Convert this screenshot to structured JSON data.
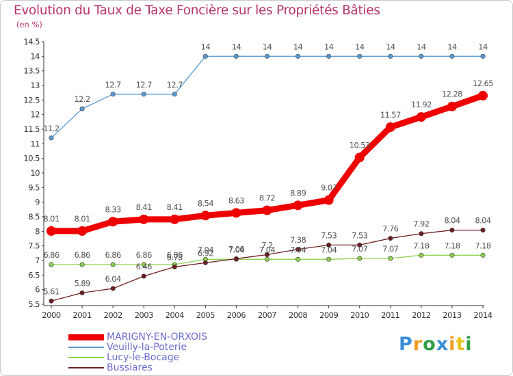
{
  "chart_data": {
    "type": "line",
    "title": "Evolution du Taux de Taxe Foncière sur les Propriétés Bâties",
    "unit_label": "(en %)",
    "xlabel": "",
    "ylabel": "",
    "ylim": [
      5.5,
      14.5
    ],
    "yticks": [
      "5.5",
      "6",
      "6.5",
      "7",
      "7.5",
      "8",
      "8.5",
      "9",
      "9.5",
      "10",
      "10.5",
      "11",
      "11.5",
      "12",
      "12.5",
      "13",
      "13.5",
      "14",
      "14.5"
    ],
    "x": [
      "2000",
      "2001",
      "2002",
      "2003",
      "2004",
      "2005",
      "2006",
      "2007",
      "2008",
      "2009",
      "2010",
      "2011",
      "2012",
      "2013",
      "2014"
    ],
    "series": [
      {
        "name": "MARIGNY-EN-ORXOIS",
        "color": "#ee0000",
        "highlight": true,
        "values": [
          8.01,
          8.01,
          8.33,
          8.41,
          8.41,
          8.54,
          8.63,
          8.72,
          8.89,
          9.07,
          10.53,
          11.57,
          11.92,
          12.28,
          12.65
        ],
        "labels": [
          "8.01",
          "8.01",
          "8.33",
          "8.41",
          "8.41",
          "8.54",
          "8.63",
          "8.72",
          "8.89",
          "9.07",
          "10.53",
          "11.57",
          "11.92",
          "12.28",
          "12.65"
        ]
      },
      {
        "name": "Veuilly-la-Poterie",
        "color": "#5b9bd5",
        "highlight": false,
        "values": [
          11.2,
          12.2,
          12.7,
          12.7,
          12.7,
          14,
          14,
          14,
          14,
          14,
          14,
          14,
          14,
          14,
          14
        ],
        "labels": [
          "11.2",
          "12.2",
          "12.7",
          "12.7",
          "12.7",
          "14",
          "14",
          "14",
          "14",
          "14",
          "14",
          "14",
          "14",
          "14",
          "14"
        ]
      },
      {
        "name": "Lucy-le-Bocage",
        "color": "#8fd14f",
        "highlight": false,
        "values": [
          6.86,
          6.86,
          6.86,
          6.86,
          6.86,
          7.04,
          7.04,
          7.04,
          7.04,
          7.04,
          7.07,
          7.07,
          7.18,
          7.18,
          7.18
        ],
        "labels": [
          "6.86",
          "6.86",
          "6.86",
          "6.86",
          "6.86",
          "7.04",
          "7.04",
          "7.04",
          "7.04",
          "7.04",
          "7.07",
          "7.07",
          "7.18",
          "7.18",
          "7.18"
        ]
      },
      {
        "name": "Bussiares",
        "color": "#6b1f1f",
        "highlight": false,
        "values": [
          5.61,
          5.89,
          6.04,
          6.46,
          6.78,
          6.92,
          7.06,
          7.2,
          7.38,
          7.53,
          7.53,
          7.76,
          7.92,
          8.04,
          8.04
        ],
        "labels": [
          "5.61",
          "5.89",
          "6.04",
          "6.46",
          "6.78",
          "6.92",
          "7.06",
          "7.2",
          "7.38",
          "7.53",
          "7.53",
          "7.76",
          "7.92",
          "8.04",
          "8.04"
        ]
      }
    ]
  },
  "colors": {
    "title": "#b8336a",
    "legend_text": "#6b6bcf",
    "axis": "#444444",
    "label": "#555555"
  },
  "logo": {
    "text": "Proxiti",
    "letters": [
      "P",
      "r",
      "o",
      "x",
      "i",
      "t",
      "i"
    ],
    "letter_colors": [
      "#3a8fd6",
      "#f29a1f",
      "#2f9e44",
      "#3a8fd6",
      "#f29a1f",
      "#e8c21a",
      "#2f9e44"
    ]
  }
}
